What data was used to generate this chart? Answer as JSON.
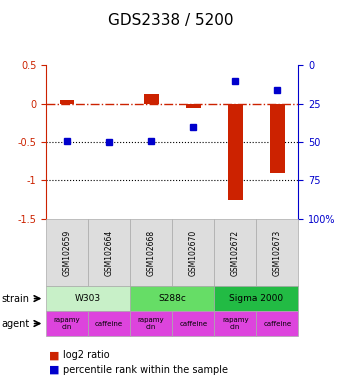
{
  "title": "GDS2338 / 5200",
  "samples": [
    "GSM102659",
    "GSM102664",
    "GSM102668",
    "GSM102670",
    "GSM102672",
    "GSM102673"
  ],
  "log2_ratio": [
    0.05,
    0.0,
    0.12,
    -0.05,
    -1.25,
    -0.9
  ],
  "percentile": [
    49,
    50,
    49,
    40,
    10,
    16
  ],
  "left_yticks": [
    0.5,
    0.0,
    -0.5,
    -1.0,
    -1.5
  ],
  "left_yticklabels": [
    "0.5",
    "0",
    "-0.5",
    "-1",
    "-1.5"
  ],
  "right_yticks": [
    0,
    25,
    50,
    75,
    100
  ],
  "right_yticklabels": [
    "0",
    "25",
    "50",
    "75",
    "100%"
  ],
  "bar_color": "#cc2200",
  "dot_color": "#0000cc",
  "hline_color": "#cc2200",
  "grid_color": "#000000",
  "strain_colors": [
    "#c8f0c8",
    "#66dd66",
    "#22bb44"
  ],
  "strains": [
    [
      "W303",
      0,
      2
    ],
    [
      "S288c",
      2,
      4
    ],
    [
      "Sigma 2000",
      4,
      6
    ]
  ],
  "agents": [
    "rapamycin",
    "caffeine",
    "rapamycin",
    "caffeine",
    "rapamycin",
    "caffeine"
  ],
  "agent_color": "#dd44dd",
  "title_fontsize": 11,
  "tick_fontsize": 7,
  "bg_color": "#ffffff"
}
